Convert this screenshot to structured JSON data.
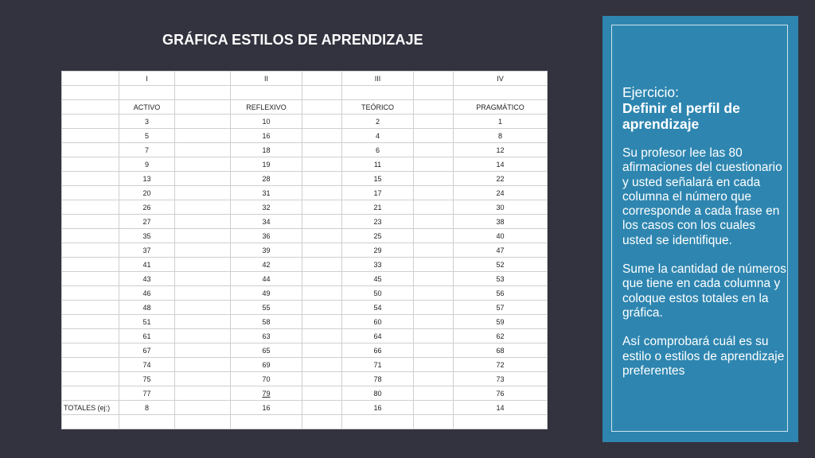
{
  "title": "GRÁFICA ESTILOS DE APRENDIZAJE",
  "table": {
    "roman_headers": [
      "I",
      "II",
      "III",
      "IV"
    ],
    "style_headers": [
      "ACTIVO",
      "REFLEXIVO",
      "TEÓRICO",
      "PRAGMÁTICO"
    ],
    "rows": [
      [
        "3",
        "10",
        "2",
        "1"
      ],
      [
        "5",
        "16",
        "4",
        "8"
      ],
      [
        "7",
        "18",
        "6",
        "12"
      ],
      [
        "9",
        "19",
        "11",
        "14"
      ],
      [
        "13",
        "28",
        "15",
        "22"
      ],
      [
        "20",
        "31",
        "17",
        "24"
      ],
      [
        "26",
        "32",
        "21",
        "30"
      ],
      [
        "27",
        "34",
        "23",
        "38"
      ],
      [
        "35",
        "36",
        "25",
        "40"
      ],
      [
        "37",
        "39",
        "29",
        "47"
      ],
      [
        "41",
        "42",
        "33",
        "52"
      ],
      [
        "43",
        "44",
        "45",
        "53"
      ],
      [
        "46",
        "49",
        "50",
        "56"
      ],
      [
        "48",
        "55",
        "54",
        "57"
      ],
      [
        "51",
        "58",
        "60",
        "59"
      ],
      [
        "61",
        "63",
        "64",
        "62"
      ],
      [
        "67",
        "65",
        "66",
        "68"
      ],
      [
        "74",
        "69",
        "71",
        "72"
      ],
      [
        "75",
        "70",
        "78",
        "73"
      ],
      [
        "77",
        "79",
        "80",
        "76"
      ]
    ],
    "totals_label": "TOTALES (ej:)",
    "totals": [
      "8",
      "16",
      "16",
      "14"
    ]
  },
  "panel": {
    "heading_1": "Ejercicio:",
    "heading_2": "Definir el perfil de aprendizaje",
    "paragraph_1": "Su profesor lee las 80 afirmaciones del cuestionario y usted señalará en cada columna el número que corresponde a cada frase en los casos con los cuales usted se identifique.",
    "paragraph_2": "Sume la cantidad de números que tiene en cada columna y coloque estos totales en la gráfica.",
    "paragraph_3": "Así comprobará cuál es su estilo o estilos de aprendizaje preferentes"
  },
  "colors": {
    "background": "#33323f",
    "panel": "#2e86b0",
    "table_background": "#ffffff",
    "grid_line": "#cfcfcf"
  }
}
